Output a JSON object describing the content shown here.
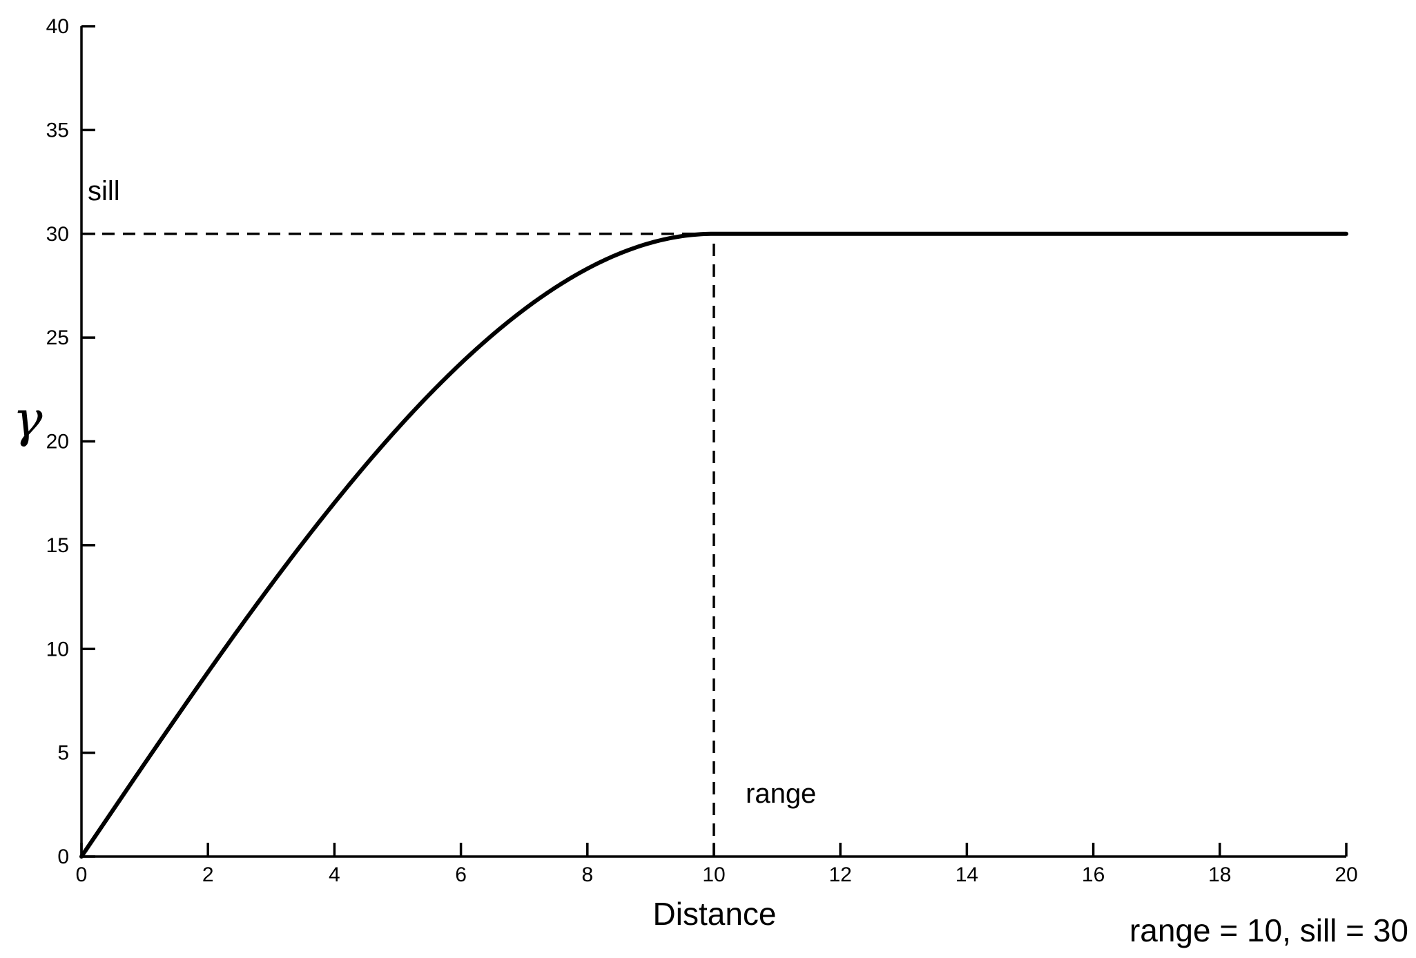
{
  "chart_data": {
    "type": "line",
    "title": "",
    "xlabel": "Distance",
    "ylabel": "γ",
    "xlim": [
      0,
      20
    ],
    "ylim": [
      0,
      40
    ],
    "xticks": [
      0,
      2,
      4,
      6,
      8,
      10,
      12,
      14,
      16,
      18,
      20
    ],
    "yticks": [
      0,
      5,
      10,
      15,
      20,
      25,
      30,
      35,
      40
    ],
    "grid": false,
    "legend": "none",
    "series": [
      {
        "x": [
          0,
          1,
          2,
          3,
          4,
          5,
          6,
          7,
          8,
          9,
          10,
          12,
          14,
          16,
          18,
          20
        ],
        "values": [
          0,
          4.485,
          8.88,
          13.095,
          17.04,
          20.625,
          23.76,
          26.355,
          28.32,
          29.565,
          30,
          30,
          30,
          30,
          30,
          30
        ]
      }
    ],
    "reference_lines": [
      {
        "orientation": "horizontal",
        "y": 30,
        "x_from": 0,
        "x_to": 10,
        "style": "dashed"
      },
      {
        "orientation": "vertical",
        "x": 10,
        "y_from": 0,
        "y_to": 30,
        "style": "dashed"
      }
    ],
    "annotations": [
      {
        "text": "sill",
        "x": 0.1,
        "y": 32
      },
      {
        "text": "range",
        "x": 10.5,
        "y": 3
      }
    ],
    "parameter_text": "range = 10, sill = 30",
    "colors": {
      "line": "#000000",
      "axis": "#000000"
    }
  }
}
